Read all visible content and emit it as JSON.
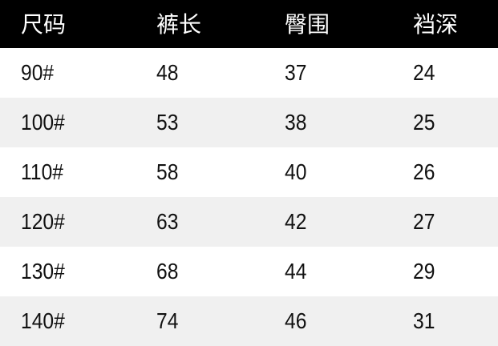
{
  "table": {
    "headers": [
      "尺码",
      "裤长",
      "臀围",
      "裆深"
    ],
    "rows": [
      [
        "90#",
        "48",
        "37",
        "24"
      ],
      [
        "100#",
        "53",
        "38",
        "25"
      ],
      [
        "110#",
        "58",
        "40",
        "26"
      ],
      [
        "120#",
        "63",
        "42",
        "27"
      ],
      [
        "130#",
        "68",
        "44",
        "29"
      ],
      [
        "140#",
        "74",
        "46",
        "31"
      ]
    ]
  },
  "colors": {
    "header_bg": "#000000",
    "header_text": "#ffffff",
    "alt_row_bg": "#f0f0f0"
  }
}
